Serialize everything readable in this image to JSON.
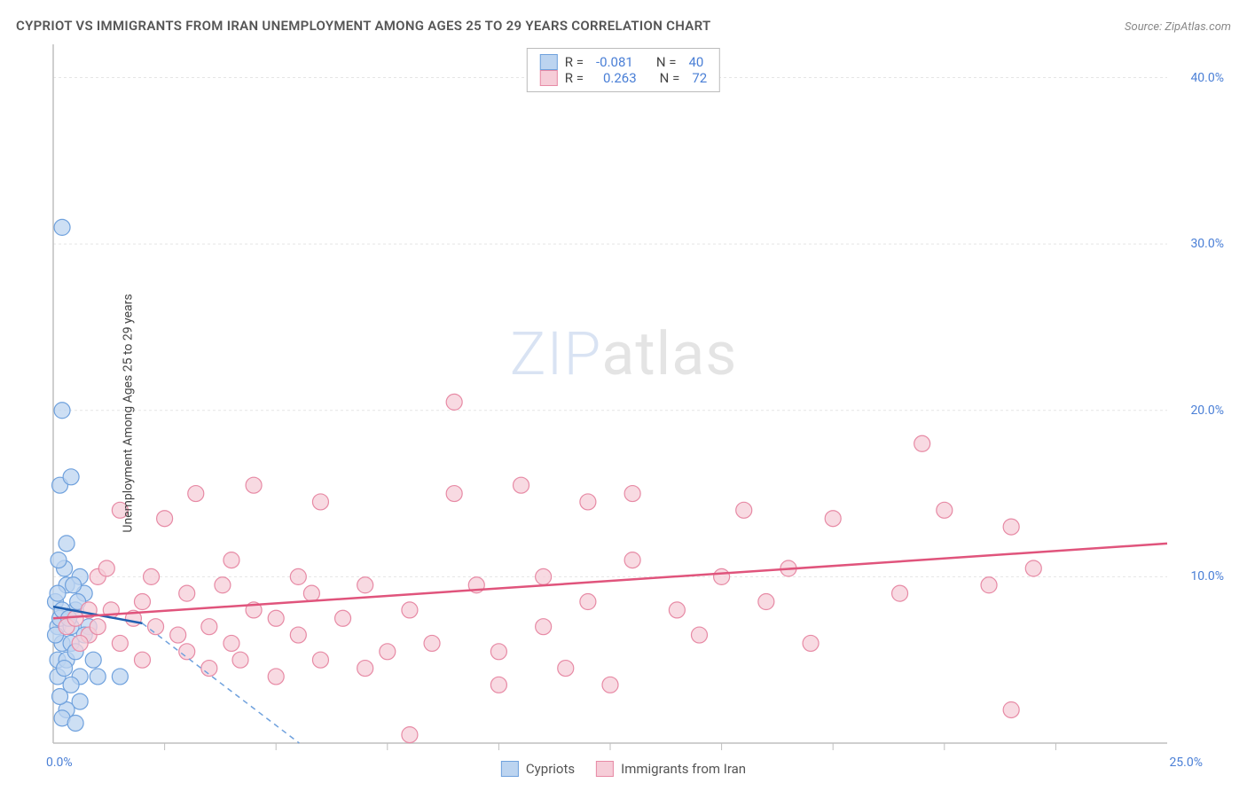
{
  "title": "CYPRIOT VS IMMIGRANTS FROM IRAN UNEMPLOYMENT AMONG AGES 25 TO 29 YEARS CORRELATION CHART",
  "source": "Source: ZipAtlas.com",
  "watermark_zip": "ZIP",
  "watermark_atlas": "atlas",
  "chart": {
    "type": "scatter",
    "y_label": "Unemployment Among Ages 25 to 29 years",
    "xlim": [
      0,
      25
    ],
    "ylim": [
      0,
      42
    ],
    "x_ticks_minor": [
      2.5,
      5,
      7.5,
      10,
      12.5,
      15,
      17.5,
      20,
      22.5
    ],
    "y_gridlines": [
      10,
      20,
      30,
      40
    ],
    "y_tick_labels": [
      "10.0%",
      "20.0%",
      "30.0%",
      "40.0%"
    ],
    "x_min_label": "0.0%",
    "x_max_label": "25.0%",
    "background_color": "#ffffff",
    "grid_color": "#e5e5e5",
    "axis_color": "#bfbfbf",
    "series": [
      {
        "name": "Cypriots",
        "marker_fill": "#bcd4f0",
        "marker_stroke": "#6fa1dd",
        "marker_radius": 9,
        "marker_opacity": 0.75,
        "R": "-0.081",
        "N": "40",
        "trend": {
          "x1": 0,
          "y1": 8.2,
          "x2": 2.0,
          "y2": 7.2,
          "stroke": "#1f5fb0",
          "width": 2.5
        },
        "trend_dash": {
          "x1": 2.0,
          "y1": 7.2,
          "x2": 6.5,
          "y2": -2,
          "stroke": "#6fa1dd",
          "width": 1.5
        },
        "points": [
          [
            0.05,
            8.5
          ],
          [
            0.1,
            7.0
          ],
          [
            0.15,
            7.5
          ],
          [
            0.2,
            6.0
          ],
          [
            0.1,
            5.0
          ],
          [
            0.3,
            9.5
          ],
          [
            0.25,
            10.5
          ],
          [
            0.4,
            7.0
          ],
          [
            0.5,
            8.0
          ],
          [
            0.4,
            6.0
          ],
          [
            0.6,
            4.0
          ],
          [
            0.6,
            2.5
          ],
          [
            0.3,
            2.0
          ],
          [
            0.2,
            1.5
          ],
          [
            0.5,
            1.2
          ],
          [
            1.0,
            4.0
          ],
          [
            1.5,
            4.0
          ],
          [
            0.3,
            12.0
          ],
          [
            0.15,
            15.5
          ],
          [
            0.4,
            16.0
          ],
          [
            0.2,
            20.0
          ],
          [
            0.2,
            31.0
          ],
          [
            0.8,
            7.0
          ],
          [
            0.1,
            9.0
          ],
          [
            0.05,
            6.5
          ],
          [
            0.3,
            5.0
          ],
          [
            0.7,
            9.0
          ],
          [
            0.1,
            4.0
          ],
          [
            0.6,
            10.0
          ],
          [
            0.4,
            3.5
          ],
          [
            0.15,
            2.8
          ],
          [
            0.5,
            5.5
          ],
          [
            0.2,
            8.0
          ],
          [
            0.35,
            7.5
          ],
          [
            0.55,
            8.5
          ],
          [
            0.7,
            6.5
          ],
          [
            0.25,
            4.5
          ],
          [
            0.45,
            9.5
          ],
          [
            0.12,
            11.0
          ],
          [
            0.9,
            5.0
          ]
        ]
      },
      {
        "name": "Immigrants from Iran",
        "marker_fill": "#f6cdd8",
        "marker_stroke": "#e78aa5",
        "marker_radius": 9,
        "marker_opacity": 0.75,
        "R": "0.263",
        "N": "72",
        "trend": {
          "x1": 0,
          "y1": 7.5,
          "x2": 25,
          "y2": 12.0,
          "stroke": "#e0547c",
          "width": 2.5
        },
        "points": [
          [
            0.3,
            7.0
          ],
          [
            0.5,
            7.5
          ],
          [
            0.8,
            6.5
          ],
          [
            1.0,
            10.0
          ],
          [
            1.2,
            10.5
          ],
          [
            1.5,
            6.0
          ],
          [
            1.5,
            14.0
          ],
          [
            1.8,
            7.5
          ],
          [
            2.0,
            5.0
          ],
          [
            2.0,
            8.5
          ],
          [
            2.2,
            10.0
          ],
          [
            2.5,
            13.5
          ],
          [
            2.8,
            6.5
          ],
          [
            3.0,
            9.0
          ],
          [
            3.0,
            5.5
          ],
          [
            3.2,
            15.0
          ],
          [
            3.5,
            7.0
          ],
          [
            3.5,
            4.5
          ],
          [
            3.8,
            9.5
          ],
          [
            4.0,
            6.0
          ],
          [
            4.0,
            11.0
          ],
          [
            4.5,
            8.0
          ],
          [
            4.5,
            15.5
          ],
          [
            5.0,
            7.5
          ],
          [
            5.0,
            4.0
          ],
          [
            5.5,
            10.0
          ],
          [
            5.5,
            6.5
          ],
          [
            5.8,
            9.0
          ],
          [
            6.0,
            5.0
          ],
          [
            6.0,
            14.5
          ],
          [
            6.5,
            7.5
          ],
          [
            7.0,
            9.5
          ],
          [
            7.0,
            4.5
          ],
          [
            7.5,
            5.5
          ],
          [
            8.0,
            0.5
          ],
          [
            8.0,
            8.0
          ],
          [
            8.5,
            6.0
          ],
          [
            9.0,
            15.0
          ],
          [
            9.0,
            20.5
          ],
          [
            9.5,
            9.5
          ],
          [
            10.0,
            5.5
          ],
          [
            10.0,
            3.5
          ],
          [
            10.5,
            15.5
          ],
          [
            11.0,
            7.0
          ],
          [
            11.0,
            10.0
          ],
          [
            11.5,
            4.5
          ],
          [
            12.0,
            8.5
          ],
          [
            12.0,
            14.5
          ],
          [
            12.5,
            3.5
          ],
          [
            13.0,
            11.0
          ],
          [
            13.0,
            15.0
          ],
          [
            14.0,
            8.0
          ],
          [
            14.5,
            6.5
          ],
          [
            15.0,
            10.0
          ],
          [
            15.5,
            14.0
          ],
          [
            16.0,
            8.5
          ],
          [
            16.5,
            10.5
          ],
          [
            17.0,
            6.0
          ],
          [
            17.5,
            13.5
          ],
          [
            19.0,
            9.0
          ],
          [
            19.5,
            18.0
          ],
          [
            20.0,
            14.0
          ],
          [
            21.0,
            9.5
          ],
          [
            21.5,
            2.0
          ],
          [
            21.5,
            13.0
          ],
          [
            22.0,
            10.5
          ],
          [
            1.0,
            7.0
          ],
          [
            1.3,
            8.0
          ],
          [
            2.3,
            7.0
          ],
          [
            0.6,
            6.0
          ],
          [
            0.8,
            8.0
          ],
          [
            4.2,
            5.0
          ]
        ]
      }
    ],
    "legend_top": [
      {
        "swatch_fill": "#bcd4f0",
        "swatch_stroke": "#6fa1dd",
        "R_label": "R =",
        "N_label": "N ="
      },
      {
        "swatch_fill": "#f6cdd8",
        "swatch_stroke": "#e78aa5",
        "R_label": "R =",
        "N_label": "N ="
      }
    ],
    "legend_bottom": [
      {
        "swatch_fill": "#bcd4f0",
        "swatch_stroke": "#6fa1dd",
        "label": "Cypriots"
      },
      {
        "swatch_fill": "#f6cdd8",
        "swatch_stroke": "#e78aa5",
        "label": "Immigrants from Iran"
      }
    ]
  }
}
